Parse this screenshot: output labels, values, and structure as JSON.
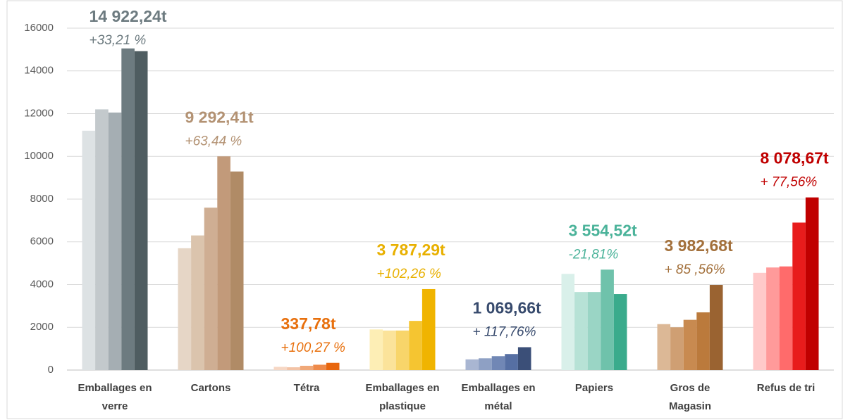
{
  "chart_data": {
    "type": "grouped-bar",
    "categories": [
      [
        "Emballages en",
        "verre"
      ],
      [
        "Cartons"
      ],
      [
        "Tétra"
      ],
      [
        "Emballages en",
        "plastique"
      ],
      [
        "Emballages en",
        "métal"
      ],
      [
        "Papiers"
      ],
      [
        "Gros de",
        "Magasin"
      ],
      [
        "Refus de tri"
      ]
    ],
    "groups": [
      {
        "values": [
          11200,
          12200,
          12050,
          15050,
          14922.24
        ],
        "colors": [
          "#dde2e4",
          "#c3c9cc",
          "#a5aeb3",
          "#6d7b80",
          "#4f5d61"
        ],
        "total": "14 922,24t",
        "change": "+33,21 %",
        "label_color": "#6d7b80"
      },
      {
        "values": [
          5700,
          6300,
          7600,
          10000,
          9292.41
        ],
        "colors": [
          "#e6d6c6",
          "#dbc4ad",
          "#cfae93",
          "#c29a7a",
          "#b08b66"
        ],
        "total": "9 292,41t",
        "change": "+63,44 %",
        "label_color": "#b39273"
      },
      {
        "values": [
          150,
          130,
          200,
          250,
          337.78
        ],
        "colors": [
          "#f6d7c4",
          "#f3c3a6",
          "#f0a878",
          "#ee8a4a",
          "#e8660e"
        ],
        "total": "337,78t",
        "change": "+100,27 %",
        "label_color": "#e8700d"
      },
      {
        "values": [
          1900,
          1850,
          1850,
          2300,
          3787.29
        ],
        "colors": [
          "#fdeeb5",
          "#fbe39a",
          "#f8d56a",
          "#f5c531",
          "#f0b400"
        ],
        "total": "3 787,29t",
        "change": "+102,26 %",
        "label_color": "#e8b000"
      },
      {
        "values": [
          500,
          550,
          650,
          750,
          1069.66
        ],
        "colors": [
          "#a9b6d2",
          "#8ea0c4",
          "#7187b5",
          "#566fa3",
          "#3b4f78"
        ],
        "total": "1 069,66t",
        "change": "+ 117,76%",
        "label_color": "#374a6d"
      },
      {
        "values": [
          4500,
          3650,
          3650,
          4700,
          3554.52
        ],
        "colors": [
          "#d9f0ea",
          "#b7e2d6",
          "#9ad5c5",
          "#6fc2ab",
          "#3aab8c"
        ],
        "total": "3 554,52t",
        "change": "-21,81%",
        "label_color": "#4bb39a"
      },
      {
        "values": [
          2150,
          2000,
          2350,
          2700,
          3982.68
        ],
        "colors": [
          "#dcb896",
          "#cf9f73",
          "#c88a50",
          "#bb7a3c",
          "#9a6331"
        ],
        "total": "3 982,68t",
        "change": "+ 85 ,56%",
        "label_color": "#a3703b"
      },
      {
        "values": [
          4550,
          4800,
          4850,
          6900,
          8078.67
        ],
        "colors": [
          "#ffc9c9",
          "#ff9a9a",
          "#ff6b6b",
          "#e81c1c",
          "#c00000"
        ],
        "total": "8 078,67t",
        "change": "+ 77,56%",
        "label_color": "#c00000"
      }
    ],
    "ylim": [
      0,
      16000
    ],
    "yticks": [
      0,
      2000,
      4000,
      6000,
      8000,
      10000,
      12000,
      14000,
      16000
    ],
    "grid": true
  }
}
